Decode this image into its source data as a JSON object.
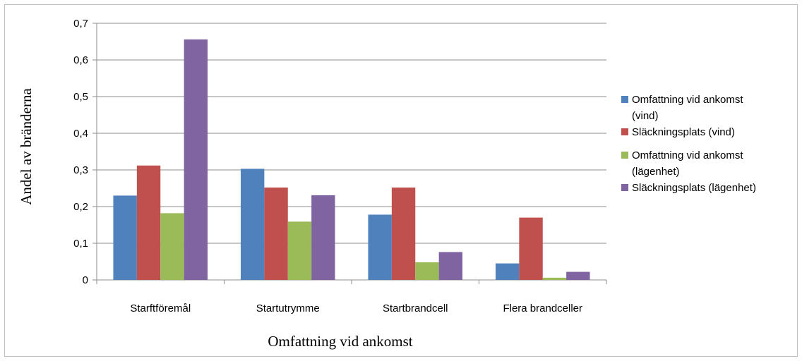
{
  "chart_data": {
    "type": "bar",
    "title": "",
    "xlabel": "Omfattning vid ankomst",
    "ylabel": "Andel av bränderna",
    "ylim": [
      0,
      0.7
    ],
    "yticks": [
      "0",
      "0,1",
      "0,2",
      "0,3",
      "0,4",
      "0,5",
      "0,6",
      "0,7"
    ],
    "categories": [
      "Starftföremål",
      "Startutrymme",
      "Startbrandcell",
      "Flera brandceller"
    ],
    "grid": true,
    "legend_position": "right",
    "series": [
      {
        "name": "Omfattning vid ankomst\n(vind)",
        "color": "#4f81bd",
        "values": [
          0.23,
          0.303,
          0.178,
          0.045
        ]
      },
      {
        "name": "Släckningsplats (vind)",
        "color": "#c0504d",
        "values": [
          0.312,
          0.252,
          0.252,
          0.17
        ]
      },
      {
        "name": "Omfattning vid ankomst\n(lägenhet)",
        "color": "#9bbb59",
        "values": [
          0.182,
          0.159,
          0.048,
          0.006
        ]
      },
      {
        "name": "Släckningsplats (lägenhet)",
        "color": "#8064a2",
        "values": [
          0.656,
          0.231,
          0.076,
          0.022
        ]
      }
    ]
  }
}
